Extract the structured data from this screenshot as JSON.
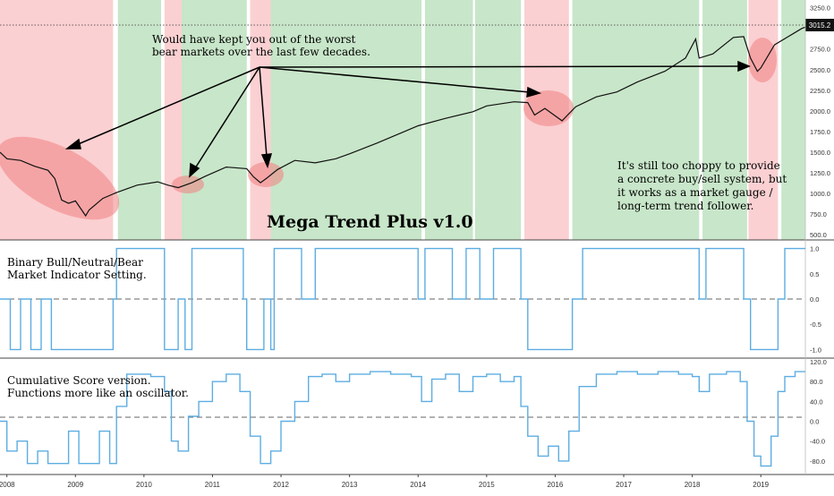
{
  "chart_data": [
    {
      "type": "line",
      "title": "Mega Trend Plus v1.0",
      "price_badge": "3015.2",
      "y_ticks": [
        "3250.0",
        "3000.0",
        "2750.0",
        "2500.0",
        "2250.0",
        "2000.0",
        "1750.0",
        "1500.0",
        "1250.0",
        "1000.0",
        "750.0",
        "500.0"
      ],
      "ylim": [
        480,
        3300
      ],
      "x_ticks": [
        "2008",
        "2009",
        "2010",
        "2011",
        "2012",
        "2013",
        "2014",
        "2015",
        "2016",
        "2017",
        "2018",
        "2019"
      ],
      "xlim": [
        2007.9,
        2019.65
      ],
      "series": [
        {
          "x": [
            2007.9,
            2008.0,
            2008.2,
            2008.4,
            2008.6,
            2008.7,
            2008.8,
            2008.9,
            2009.0,
            2009.15,
            2009.2,
            2009.4,
            2009.6,
            2009.9,
            2010.2,
            2010.35,
            2010.5,
            2010.7,
            2010.9,
            2011.2,
            2011.5,
            2011.6,
            2011.7,
            2011.8,
            2011.95,
            2012.2,
            2012.5,
            2012.8,
            2013.0,
            2013.4,
            2013.8,
            2014.0,
            2014.4,
            2014.8,
            2015.0,
            2015.4,
            2015.6,
            2015.7,
            2015.85,
            2016.1,
            2016.3,
            2016.6,
            2016.9,
            2017.2,
            2017.6,
            2017.9,
            2018.05,
            2018.1,
            2018.3,
            2018.6,
            2018.75,
            2018.85,
            2018.95,
            2019.0,
            2019.2,
            2019.4,
            2019.5,
            2019.6,
            2019.65
          ],
          "values": [
            1500,
            1420,
            1400,
            1330,
            1280,
            1180,
            920,
            880,
            910,
            730,
            800,
            940,
            1010,
            1100,
            1140,
            1100,
            1070,
            1130,
            1210,
            1320,
            1300,
            1200,
            1130,
            1190,
            1290,
            1400,
            1370,
            1420,
            1480,
            1610,
            1750,
            1820,
            1910,
            1990,
            2060,
            2110,
            2100,
            1950,
            2030,
            1880,
            2050,
            2170,
            2230,
            2350,
            2480,
            2640,
            2870,
            2640,
            2690,
            2890,
            2900,
            2640,
            2480,
            2520,
            2800,
            2900,
            2950,
            3000,
            3015
          ]
        }
      ],
      "regime_bands": {
        "bear": [
          [
            2007.9,
            2009.55
          ],
          [
            2010.3,
            2010.55
          ],
          [
            2011.55,
            2011.85
          ],
          [
            2015.55,
            2016.2
          ],
          [
            2018.82,
            2019.25
          ]
        ],
        "neutral": [
          [
            2009.55,
            2009.62
          ],
          [
            2010.25,
            2010.3
          ],
          [
            2011.5,
            2011.55
          ],
          [
            2014.05,
            2014.1
          ],
          [
            2014.8,
            2014.83
          ],
          [
            2015.5,
            2015.55
          ],
          [
            2016.2,
            2016.25
          ],
          [
            2018.1,
            2018.15
          ],
          [
            2018.8,
            2018.82
          ],
          [
            2019.25,
            2019.3
          ]
        ]
      },
      "colors": {
        "bull": "#c8e6c9",
        "bear": "#fbd0d2",
        "neutral": "#ffffff",
        "line": "#111111"
      },
      "annotations": {
        "top_note": [
          "Would have kept you out of the worst",
          "bear markets over the last few decades."
        ],
        "right_note": [
          "It's still too choppy to provide",
          "a concrete buy/sell system, but",
          "it works as a market gauge /",
          "long-term trend follower."
        ]
      }
    },
    {
      "type": "line",
      "title": "Binary Bull/Neutral/Bear Market Indicator Setting.",
      "label_lines": [
        "Binary Bull/Neutral/Bear",
        "Market Indicator Setting."
      ],
      "y_ticks": [
        "1.0",
        "0.5",
        "0.0",
        "-0.5",
        "-1.0"
      ],
      "ylim": [
        -1.1,
        1.1
      ],
      "color": "#5dade2",
      "series": [
        {
          "x": [
            2007.9,
            2008.05,
            2008.2,
            2008.35,
            2008.5,
            2008.65,
            2008.8,
            2009.0,
            2009.2,
            2009.4,
            2009.55,
            2009.6,
            2009.8,
            2010.0,
            2010.2,
            2010.3,
            2010.4,
            2010.5,
            2010.6,
            2010.7,
            2010.9,
            2011.1,
            2011.3,
            2011.45,
            2011.5,
            2011.6,
            2011.75,
            2011.85,
            2011.9,
            2012.1,
            2012.3,
            2012.5,
            2012.7,
            2012.9,
            2013.1,
            2013.3,
            2013.5,
            2013.7,
            2013.9,
            2014.0,
            2014.1,
            2014.3,
            2014.5,
            2014.7,
            2014.8,
            2014.9,
            2015.1,
            2015.3,
            2015.45,
            2015.5,
            2015.6,
            2015.8,
            2016.0,
            2016.2,
            2016.25,
            2016.4,
            2016.6,
            2016.8,
            2017.0,
            2017.2,
            2017.4,
            2017.6,
            2017.8,
            2018.0,
            2018.1,
            2018.2,
            2018.4,
            2018.6,
            2018.75,
            2018.85,
            2019.0,
            2019.2,
            2019.25,
            2019.35,
            2019.5,
            2019.65
          ],
          "values": [
            0,
            -1,
            0,
            -1,
            0,
            -1,
            -1,
            -1,
            -1,
            -1,
            0,
            1,
            1,
            1,
            1,
            -1,
            -1,
            0,
            -1,
            1,
            1,
            1,
            1,
            0,
            -1,
            -1,
            0,
            -1,
            1,
            1,
            0,
            1,
            1,
            1,
            1,
            1,
            1,
            1,
            1,
            0,
            1,
            1,
            0,
            1,
            1,
            0,
            1,
            1,
            1,
            0,
            -1,
            -1,
            -1,
            -1,
            0,
            1,
            1,
            1,
            1,
            1,
            1,
            1,
            1,
            1,
            0,
            1,
            1,
            1,
            0,
            -1,
            -1,
            -1,
            0,
            1,
            1,
            1
          ]
        }
      ]
    },
    {
      "type": "line",
      "title": "Cumulative Score version.",
      "label_lines": [
        "Cumulative Score version.",
        "Functions more like an oscillator."
      ],
      "y_ticks": [
        "120.0",
        "80.0",
        "40.0",
        "0.0",
        "-40.0",
        "-80.0"
      ],
      "ylim": [
        -100,
        120
      ],
      "color": "#5dade2",
      "series": [
        {
          "x": [
            2007.9,
            2008.0,
            2008.15,
            2008.3,
            2008.45,
            2008.6,
            2008.75,
            2008.9,
            2009.05,
            2009.2,
            2009.35,
            2009.5,
            2009.6,
            2009.75,
            2009.9,
            2010.1,
            2010.3,
            2010.4,
            2010.5,
            2010.65,
            2010.8,
            2011.0,
            2011.2,
            2011.4,
            2011.55,
            2011.7,
            2011.85,
            2012.0,
            2012.2,
            2012.4,
            2012.6,
            2012.8,
            2013.0,
            2013.3,
            2013.6,
            2013.9,
            2014.05,
            2014.2,
            2014.4,
            2014.6,
            2014.8,
            2015.0,
            2015.2,
            2015.4,
            2015.5,
            2015.6,
            2015.75,
            2015.9,
            2016.05,
            2016.2,
            2016.35,
            2016.6,
            2016.9,
            2017.2,
            2017.5,
            2017.8,
            2018.0,
            2018.1,
            2018.25,
            2018.5,
            2018.7,
            2018.8,
            2018.9,
            2019.0,
            2019.15,
            2019.25,
            2019.35,
            2019.5,
            2019.65
          ],
          "values": [
            0,
            -60,
            -40,
            -85,
            -60,
            -85,
            -85,
            -20,
            -85,
            -85,
            -20,
            -85,
            30,
            95,
            95,
            90,
            60,
            -40,
            -60,
            10,
            40,
            80,
            95,
            60,
            -30,
            -85,
            -60,
            0,
            40,
            90,
            95,
            80,
            95,
            100,
            95,
            90,
            40,
            85,
            95,
            60,
            90,
            95,
            80,
            90,
            30,
            -30,
            -70,
            -50,
            -80,
            -20,
            70,
            95,
            100,
            95,
            100,
            95,
            90,
            60,
            95,
            100,
            80,
            0,
            -70,
            -90,
            -30,
            60,
            90,
            100,
            100
          ]
        }
      ]
    }
  ]
}
